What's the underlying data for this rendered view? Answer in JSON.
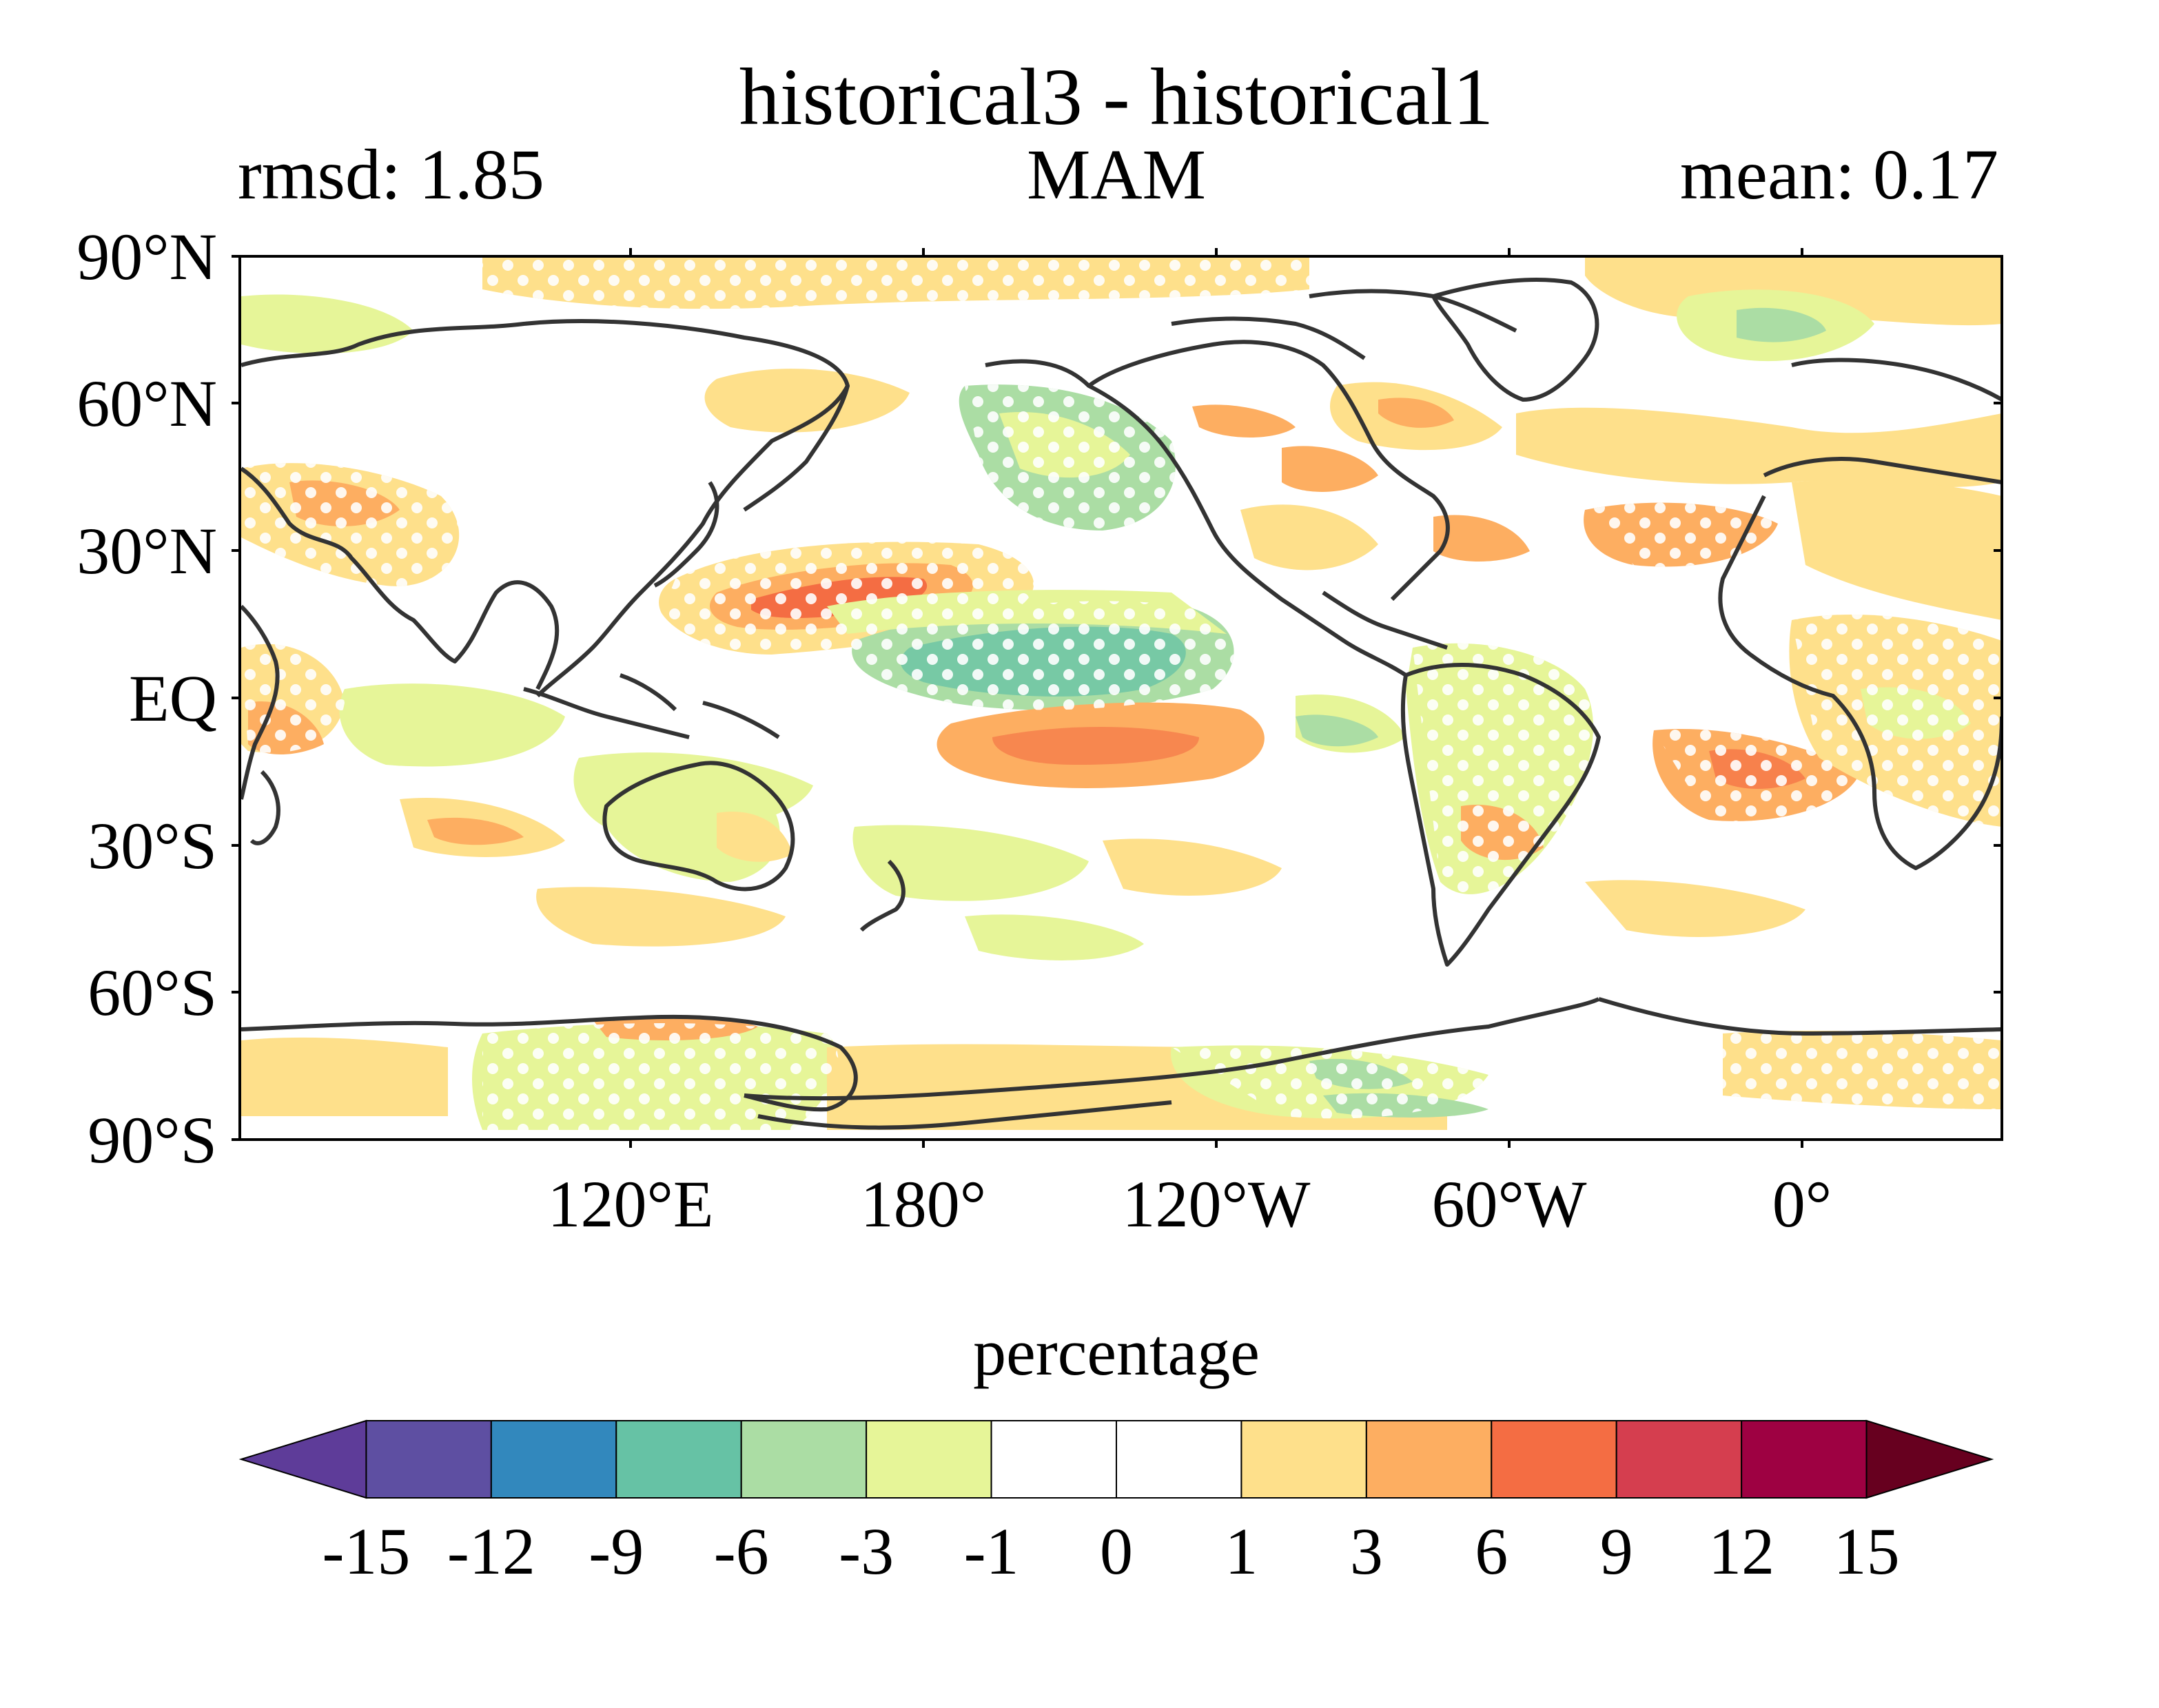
{
  "title": "historical3 - historical1",
  "subtitle_left": "rmsd: 1.85",
  "subtitle_center": "MAM",
  "subtitle_right": "mean: 0.17",
  "lat_ticks": [
    "90°N",
    "60°N",
    "30°N",
    "EQ",
    "30°S",
    "60°S",
    "90°S"
  ],
  "lon_ticks": [
    "120°E",
    "180°",
    "120°W",
    "60°W",
    "0°"
  ],
  "colorbar": {
    "label": "percentage",
    "tick_labels": [
      "-15",
      "-12",
      "-9",
      "-6",
      "-3",
      "-1",
      "0",
      "1",
      "3",
      "6",
      "9",
      "12",
      "15"
    ],
    "colors": [
      "#5e3c99",
      "#5e4fa2",
      "#3288bd",
      "#66c2a5",
      "#abdda4",
      "#e6f598",
      "#ffffff",
      "#ffffff",
      "#fee08b",
      "#fdae61",
      "#f46d43",
      "#d53e4f",
      "#9e0142",
      "#67001f"
    ]
  },
  "map": {
    "ocean_color": "#ffffff",
    "coastline_color": "#333333",
    "stipple_color": "#ffffff"
  }
}
